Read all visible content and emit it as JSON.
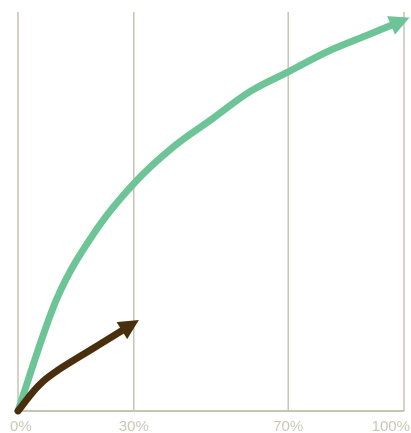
{
  "chart_data": {
    "type": "line",
    "xlabel": "",
    "ylabel": "",
    "x_tick_labels": [
      "0%",
      "30%",
      "70%",
      "100%"
    ],
    "x_tick_values": [
      0,
      30,
      70,
      100
    ],
    "xlim": [
      0,
      100
    ],
    "ylim": [
      0,
      100
    ],
    "grid": "vertical",
    "legend": "none",
    "series": [
      {
        "color": "#6cc497",
        "arrowhead": true,
        "points": [
          {
            "x": 0,
            "y": 0
          },
          {
            "x": 10,
            "y": 28
          },
          {
            "x": 20,
            "y": 45
          },
          {
            "x": 30,
            "y": 57
          },
          {
            "x": 40,
            "y": 66
          },
          {
            "x": 50,
            "y": 73
          },
          {
            "x": 60,
            "y": 80
          },
          {
            "x": 70,
            "y": 85
          },
          {
            "x": 80,
            "y": 90
          },
          {
            "x": 90,
            "y": 94
          },
          {
            "x": 100,
            "y": 98
          }
        ]
      },
      {
        "color": "#4a2f0f",
        "arrowhead": true,
        "points": [
          {
            "x": 0,
            "y": 0
          },
          {
            "x": 5,
            "y": 6
          },
          {
            "x": 10,
            "y": 10
          },
          {
            "x": 20,
            "y": 16
          },
          {
            "x": 30,
            "y": 22
          }
        ]
      }
    ]
  },
  "colors": {
    "grid": "#c8c4b4",
    "tick_label": "#cbc7b6",
    "background": "#ffffff"
  }
}
